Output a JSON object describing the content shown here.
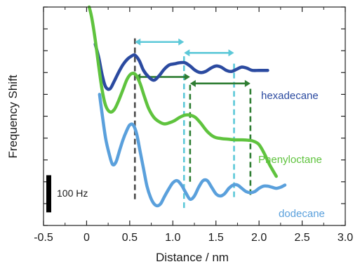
{
  "chart_data": {
    "type": "line",
    "title": "",
    "xlabel": "Distance / nm",
    "ylabel": "Frequency Shift",
    "xlim": [
      -0.5,
      3.0
    ],
    "xticks": [
      "-0.5",
      "0",
      "0.5",
      "1.0",
      "1.5",
      "2.0",
      "2.5",
      "3.0"
    ],
    "xtick_values": [
      -0.5,
      0,
      0.5,
      1.0,
      1.5,
      2.0,
      2.5,
      3.0
    ],
    "ylim": [
      0,
      10
    ],
    "yticks_shown": false,
    "grid": false,
    "scale_bar": {
      "label": "100 Hz",
      "value": 1.7
    },
    "series": [
      {
        "name": "hexadecane",
        "color": "#2b4aa0",
        "x": [
          0.1,
          0.14,
          0.18,
          0.22,
          0.27,
          0.32,
          0.37,
          0.42,
          0.47,
          0.52,
          0.56,
          0.61,
          0.66,
          0.72,
          0.78,
          0.84,
          0.9,
          0.96,
          1.02,
          1.08,
          1.14,
          1.2,
          1.26,
          1.32,
          1.38,
          1.44,
          1.5,
          1.56,
          1.62,
          1.68,
          1.74,
          1.8,
          1.86,
          1.92,
          2.0,
          2.1
        ],
        "y": [
          8.3,
          7.7,
          6.9,
          6.35,
          6.25,
          6.6,
          7.0,
          7.35,
          7.6,
          7.75,
          7.8,
          7.55,
          7.1,
          6.8,
          6.65,
          6.85,
          7.15,
          7.35,
          7.4,
          7.45,
          7.45,
          7.3,
          7.1,
          7.0,
          7.05,
          7.2,
          7.3,
          7.25,
          7.1,
          7.05,
          7.15,
          7.25,
          7.2,
          7.1,
          7.1,
          7.1
        ]
      },
      {
        "name": "Phenyloctane",
        "color": "#5fc33e",
        "x": [
          0.03,
          0.06,
          0.1,
          0.14,
          0.18,
          0.22,
          0.27,
          0.32,
          0.37,
          0.42,
          0.47,
          0.52,
          0.57,
          0.62,
          0.67,
          0.72,
          0.78,
          0.84,
          0.9,
          0.96,
          1.02,
          1.08,
          1.14,
          1.2,
          1.26,
          1.32,
          1.4,
          1.48,
          1.56,
          1.64,
          1.72,
          1.8,
          1.88,
          1.94,
          2.0,
          2.06,
          2.12,
          2.2
        ],
        "y": [
          10.0,
          9.5,
          8.5,
          7.3,
          6.2,
          5.5,
          5.2,
          5.3,
          5.7,
          6.2,
          6.7,
          6.95,
          6.9,
          6.5,
          5.9,
          5.35,
          4.95,
          4.75,
          4.65,
          4.7,
          4.8,
          4.95,
          5.05,
          5.05,
          4.95,
          4.7,
          4.3,
          4.05,
          3.98,
          3.95,
          3.92,
          3.92,
          3.9,
          3.85,
          3.7,
          3.3,
          2.8,
          2.25
        ]
      },
      {
        "name": "dodecane",
        "color": "#5aa0dc",
        "x": [
          0.15,
          0.18,
          0.22,
          0.26,
          0.3,
          0.34,
          0.38,
          0.42,
          0.46,
          0.5,
          0.54,
          0.58,
          0.62,
          0.66,
          0.7,
          0.74,
          0.78,
          0.82,
          0.86,
          0.9,
          0.95,
          1.0,
          1.05,
          1.1,
          1.15,
          1.2,
          1.25,
          1.3,
          1.35,
          1.4,
          1.45,
          1.5,
          1.55,
          1.6,
          1.65,
          1.7,
          1.75,
          1.8,
          1.85,
          1.9,
          1.95,
          2.0,
          2.05,
          2.1,
          2.15,
          2.2,
          2.25,
          2.3
        ],
        "y": [
          6.0,
          5.1,
          4.0,
          3.3,
          2.8,
          2.9,
          3.4,
          3.9,
          4.3,
          4.6,
          4.6,
          4.2,
          3.4,
          2.6,
          1.8,
          1.3,
          1.0,
          0.9,
          1.0,
          1.3,
          1.65,
          1.95,
          2.05,
          1.85,
          1.5,
          1.2,
          1.35,
          1.75,
          2.05,
          2.05,
          1.75,
          1.45,
          1.35,
          1.45,
          1.7,
          1.85,
          1.85,
          1.7,
          1.55,
          1.5,
          1.55,
          1.7,
          1.8,
          1.8,
          1.75,
          1.7,
          1.75,
          1.85
        ]
      }
    ],
    "vertical_markers": [
      {
        "x": 0.56,
        "color": "#4a4a4a",
        "y_from": 1.2,
        "y_to": 8.7
      },
      {
        "x": 1.13,
        "color": "#5cc8d8",
        "y_from": 0.8,
        "y_to": 7.9
      },
      {
        "x": 1.71,
        "color": "#5cc8d8",
        "y_from": 1.3,
        "y_to": 7.5
      },
      {
        "x": 1.2,
        "color": "#2e7d32",
        "y_from": 2.0,
        "y_to": 6.5
      },
      {
        "x": 1.9,
        "color": "#2e7d32",
        "y_from": 1.4,
        "y_to": 6.4
      }
    ],
    "arrows": [
      {
        "x1": 0.56,
        "x2": 1.13,
        "y": 8.4,
        "color": "#5cc8d8"
      },
      {
        "x1": 1.13,
        "x2": 1.71,
        "y": 7.9,
        "color": "#5cc8d8"
      },
      {
        "x1": 0.56,
        "x2": 1.2,
        "y": 6.8,
        "color": "#2e7d32"
      },
      {
        "x1": 1.2,
        "x2": 1.9,
        "y": 6.5,
        "color": "#2e7d32"
      }
    ]
  }
}
